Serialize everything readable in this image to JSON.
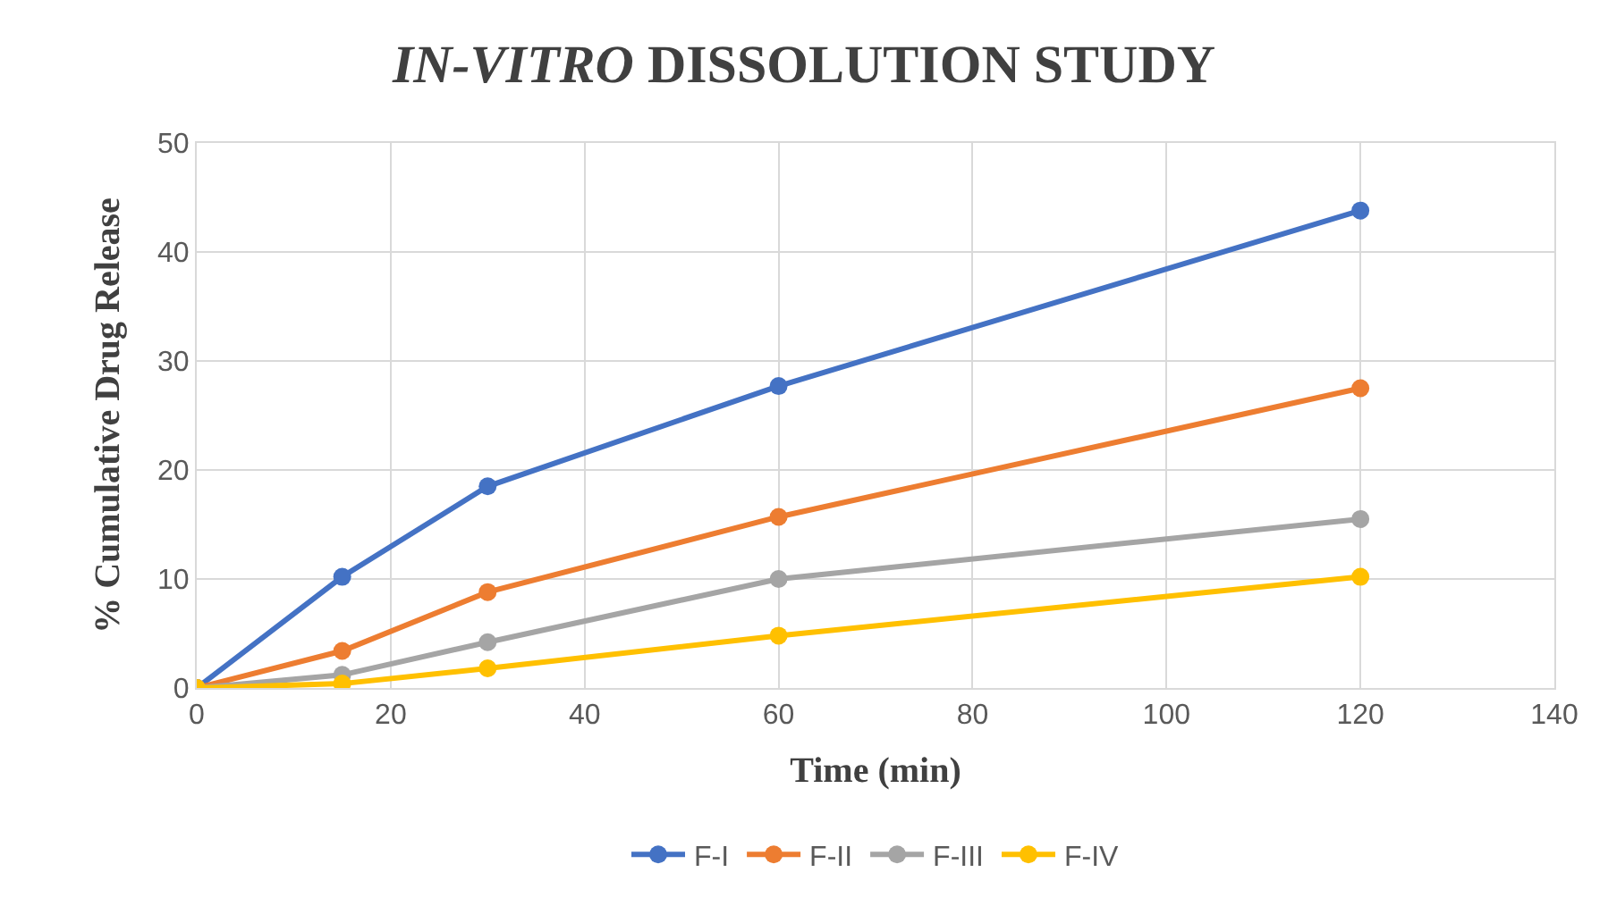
{
  "chart_data": {
    "type": "line",
    "title": "IN-VITRO DISSOLUTION STUDY",
    "xlabel": "Time (min)",
    "ylabel": "% Cumulative Drug Release",
    "x": [
      0,
      15,
      30,
      60,
      120
    ],
    "series": [
      {
        "name": "F-I",
        "color": "#4472c4",
        "values": [
          0,
          10.2,
          18.5,
          27.7,
          43.8
        ]
      },
      {
        "name": "F-II",
        "color": "#ed7d31",
        "values": [
          0,
          3.4,
          8.8,
          15.7,
          27.5
        ]
      },
      {
        "name": "F-III",
        "color": "#a5a5a5",
        "values": [
          0,
          1.2,
          4.2,
          10.0,
          15.5
        ]
      },
      {
        "name": "F-IV",
        "color": "#ffc000",
        "values": [
          0,
          0.4,
          1.8,
          4.8,
          10.2
        ]
      }
    ],
    "xlim": [
      0,
      140
    ],
    "xticks": [
      0,
      20,
      40,
      60,
      80,
      100,
      120,
      140
    ],
    "ylim": [
      0,
      50
    ],
    "yticks": [
      0,
      10,
      20,
      30,
      40,
      50
    ],
    "grid": true,
    "legend": "bottom",
    "marker": "circle",
    "line_style": "solid"
  }
}
